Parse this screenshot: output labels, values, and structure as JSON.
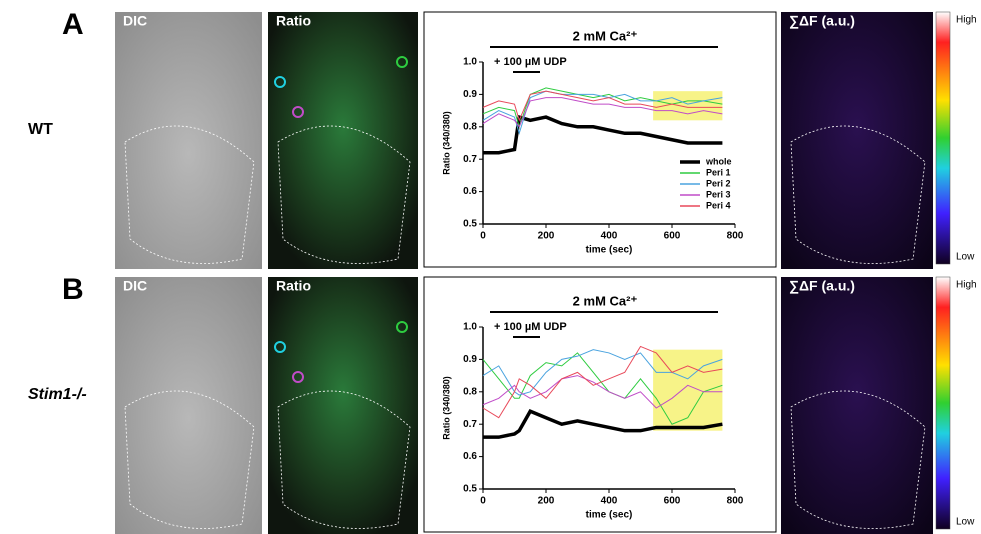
{
  "panels": [
    {
      "label": "A",
      "row_label": "WT",
      "images": [
        "DIC",
        "Ratio",
        "∑ΔF (a.u.)"
      ],
      "colorbar": [
        "High",
        "Low"
      ]
    },
    {
      "label": "B",
      "row_label": "Stim1-/-",
      "images": [
        "DIC",
        "Ratio",
        "∑ΔF (a.u.)"
      ],
      "colorbar": [
        "High",
        "Low"
      ]
    }
  ],
  "chart_data": [
    {
      "type": "line",
      "xlabel": "time (sec)",
      "ylabel": "Ratio (340/380)",
      "annotations": [
        "2 mM Ca²⁺",
        "+ 100 µM UDP"
      ],
      "x": [
        0,
        50,
        100,
        115,
        150,
        200,
        250,
        300,
        350,
        400,
        450,
        500,
        550,
        600,
        650,
        700,
        760
      ],
      "series": [
        {
          "name": "whole",
          "color": "#000000",
          "values": [
            0.72,
            0.72,
            0.73,
            0.83,
            0.82,
            0.83,
            0.81,
            0.8,
            0.8,
            0.79,
            0.78,
            0.78,
            0.77,
            0.76,
            0.75,
            0.75,
            0.75
          ]
        },
        {
          "name": "Peri 1",
          "color": "#2ecc40",
          "values": [
            0.84,
            0.86,
            0.85,
            0.8,
            0.9,
            0.92,
            0.91,
            0.9,
            0.89,
            0.9,
            0.88,
            0.89,
            0.88,
            0.87,
            0.88,
            0.88,
            0.87
          ]
        },
        {
          "name": "Peri 2",
          "color": "#4aa3df",
          "values": [
            0.82,
            0.85,
            0.83,
            0.78,
            0.89,
            0.91,
            0.9,
            0.9,
            0.9,
            0.89,
            0.9,
            0.88,
            0.88,
            0.89,
            0.87,
            0.88,
            0.89
          ]
        },
        {
          "name": "Peri 3",
          "color": "#c04cc8",
          "values": [
            0.81,
            0.84,
            0.82,
            0.8,
            0.88,
            0.89,
            0.89,
            0.88,
            0.87,
            0.87,
            0.86,
            0.86,
            0.85,
            0.85,
            0.84,
            0.85,
            0.84
          ]
        },
        {
          "name": "Peri 4",
          "color": "#e8495a",
          "values": [
            0.86,
            0.88,
            0.87,
            0.82,
            0.9,
            0.91,
            0.9,
            0.89,
            0.88,
            0.89,
            0.87,
            0.87,
            0.86,
            0.87,
            0.86,
            0.86,
            0.86
          ]
        }
      ],
      "highlight": {
        "xlim": [
          540,
          760
        ],
        "ylim": [
          0.82,
          0.91
        ],
        "color": "#f5f06a"
      },
      "xlim": [
        0,
        800
      ],
      "xticks": [
        0,
        200,
        400,
        600,
        800
      ],
      "ylim": [
        0.5,
        1
      ],
      "yticks": [
        0.5,
        0.6,
        0.7,
        0.8,
        0.9,
        {
          "value": 1,
          "label": "1.0"
        }
      ],
      "legend": "lower right"
    },
    {
      "type": "line",
      "xlabel": "time (sec)",
      "ylabel": "Ratio (340/380)",
      "annotations": [
        "2 mM Ca²⁺",
        "+ 100 µM UDP"
      ],
      "x": [
        0,
        50,
        100,
        115,
        150,
        200,
        250,
        300,
        350,
        400,
        450,
        500,
        550,
        600,
        650,
        700,
        760
      ],
      "series": [
        {
          "name": "whole",
          "color": "#000000",
          "values": [
            0.66,
            0.66,
            0.67,
            0.68,
            0.74,
            0.72,
            0.7,
            0.71,
            0.7,
            0.69,
            0.68,
            0.68,
            0.69,
            0.69,
            0.69,
            0.69,
            0.7
          ]
        },
        {
          "name": "Peri 1",
          "color": "#2ecc40",
          "values": [
            0.9,
            0.84,
            0.78,
            0.78,
            0.85,
            0.89,
            0.88,
            0.92,
            0.86,
            0.8,
            0.78,
            0.84,
            0.78,
            0.7,
            0.72,
            0.8,
            0.82
          ]
        },
        {
          "name": "Peri 2",
          "color": "#4aa3df",
          "values": [
            0.85,
            0.88,
            0.8,
            0.79,
            0.8,
            0.86,
            0.9,
            0.91,
            0.93,
            0.92,
            0.9,
            0.92,
            0.86,
            0.86,
            0.84,
            0.88,
            0.9
          ]
        },
        {
          "name": "Peri 3",
          "color": "#c04cc8",
          "values": [
            0.76,
            0.78,
            0.82,
            0.8,
            0.78,
            0.8,
            0.84,
            0.85,
            0.83,
            0.8,
            0.78,
            0.8,
            0.75,
            0.78,
            0.82,
            0.8,
            0.8
          ]
        },
        {
          "name": "Peri 4",
          "color": "#e8495a",
          "values": [
            0.75,
            0.72,
            0.8,
            0.84,
            0.82,
            0.78,
            0.84,
            0.86,
            0.82,
            0.84,
            0.86,
            0.94,
            0.92,
            0.86,
            0.88,
            0.86,
            0.87
          ]
        }
      ],
      "highlight": {
        "xlim": [
          540,
          760
        ],
        "ylim": [
          0.68,
          0.93
        ],
        "color": "#f5f06a"
      },
      "xlim": [
        0,
        800
      ],
      "xticks": [
        0,
        200,
        400,
        600,
        800
      ],
      "ylim": [
        0.5,
        1
      ],
      "yticks": [
        0.5,
        0.6,
        0.7,
        0.8,
        0.9,
        {
          "value": 1,
          "label": "1.0"
        }
      ]
    }
  ]
}
